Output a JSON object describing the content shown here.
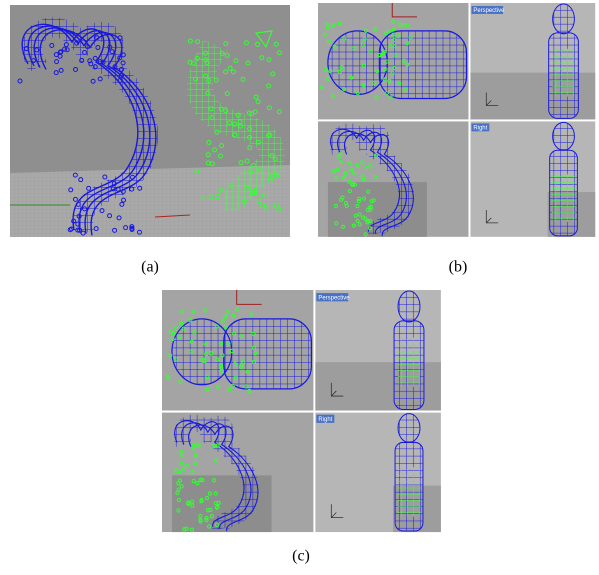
{
  "figure": {
    "panels": [
      {
        "label": "(a)"
      },
      {
        "label": "(b)",
        "viewports": [
          "Perspective",
          "Right"
        ]
      },
      {
        "label": "(c)",
        "viewports": [
          "Perspective",
          "Right"
        ]
      }
    ]
  }
}
